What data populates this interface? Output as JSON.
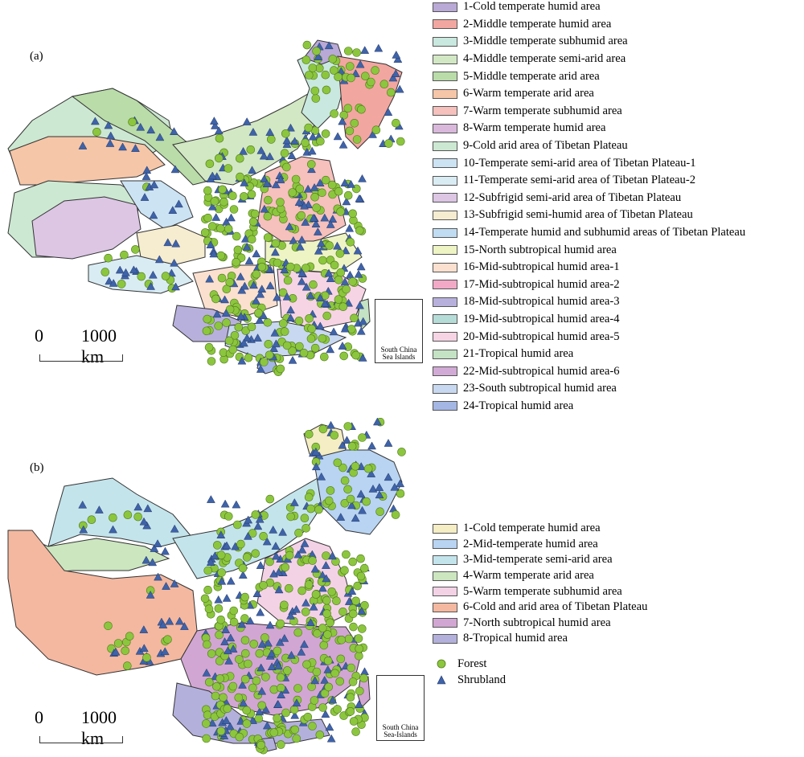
{
  "panel_a": {
    "label": "(a)",
    "legend": [
      {
        "label": "1-Cold temperate humid area",
        "color": "#b9a9d6"
      },
      {
        "label": "2-Middle temperate humid area",
        "color": "#f2a6a0"
      },
      {
        "label": "3-Middle temperate subhumid area",
        "color": "#c9e8df"
      },
      {
        "label": "4-Middle temperate semi-arid area",
        "color": "#d2e8c4"
      },
      {
        "label": "5-Middle temperate arid area",
        "color": "#b9dca9"
      },
      {
        "label": "6-Warm temperate arid area",
        "color": "#f6c6a8"
      },
      {
        "label": "7-Warm temperate subhumid area",
        "color": "#f6c0bd"
      },
      {
        "label": "8-Warm temperate humid area",
        "color": "#d9b8dc"
      },
      {
        "label": "9-Cold arid area of Tibetan Plateau",
        "color": "#cde8d2"
      },
      {
        "label": "10-Temperate semi-arid area of Tibetan Plateau-1",
        "color": "#cce3f4"
      },
      {
        "label": "11-Temperate semi-arid area of Tibetan Plateau-2",
        "color": "#d9ecf4"
      },
      {
        "label": "12-Subfrigid semi-arid area of Tibetan Plateau",
        "color": "#dcc6e4"
      },
      {
        "label": "13-Subfrigid semi-humid area of Tibetan Plateau",
        "color": "#f6ecd0"
      },
      {
        "label": "14-Temperate humid and subhumid areas of Tibetan Plateau",
        "color": "#bfdcf2"
      },
      {
        "label": "15-North subtropical humid area",
        "color": "#eef4c4"
      },
      {
        "label": "16-Mid-subtropical humid area-1",
        "color": "#fbe0d0"
      },
      {
        "label": "17-Mid-subtropical humid area-2",
        "color": "#f2a9c6"
      },
      {
        "label": "18-Mid-subtropical humid area-3",
        "color": "#b8b0dc"
      },
      {
        "label": "19-Mid-subtropical humid area-4",
        "color": "#b6dcd8"
      },
      {
        "label": "20-Mid-subtropical humid area-5",
        "color": "#f6d4e4"
      },
      {
        "label": "21-Tropical humid area",
        "color": "#c4e2c4"
      },
      {
        "label": "22-Mid-subtropical humid area-6",
        "color": "#d2aad6"
      },
      {
        "label": "23-South subtropical humid area",
        "color": "#c8d8f0"
      },
      {
        "label": "24-Tropical humid area",
        "color": "#a3b6e4"
      }
    ],
    "scale": {
      "zero": "0",
      "distance": "1000 km"
    },
    "inset_caption_line1": "South China",
    "inset_caption_line2": "Sea Islands"
  },
  "panel_b": {
    "label": "(b)",
    "legend": [
      {
        "label": "1-Cold temperate humid area",
        "color": "#f5edc4"
      },
      {
        "label": "2-Mid-temperate humid area",
        "color": "#b8d4f2"
      },
      {
        "label": "3-Mid-temperate semi-arid area",
        "color": "#c4e4ec"
      },
      {
        "label": "4-Warm temperate arid area",
        "color": "#cce6c0"
      },
      {
        "label": "5-Warm temperate subhumid area",
        "color": "#f4d2e6"
      },
      {
        "label": "6-Cold and arid area of Tibetan Plateau",
        "color": "#f4b8a0"
      },
      {
        "label": "7-North subtropical humid area",
        "color": "#d2a6d2"
      },
      {
        "label": "8-Tropical humid area",
        "color": "#b4b0dc"
      }
    ],
    "markers": [
      {
        "label": "Forest",
        "color": "#8cc63e"
      },
      {
        "label": "Shrubland",
        "color": "#3f63a8"
      }
    ],
    "scale": {
      "zero": "0",
      "distance": "1000 km"
    },
    "inset_caption_line1": "South China",
    "inset_caption_line2": "Sea-Islands"
  },
  "icons": {
    "forest": "green-circle",
    "shrubland": "blue-triangle"
  }
}
